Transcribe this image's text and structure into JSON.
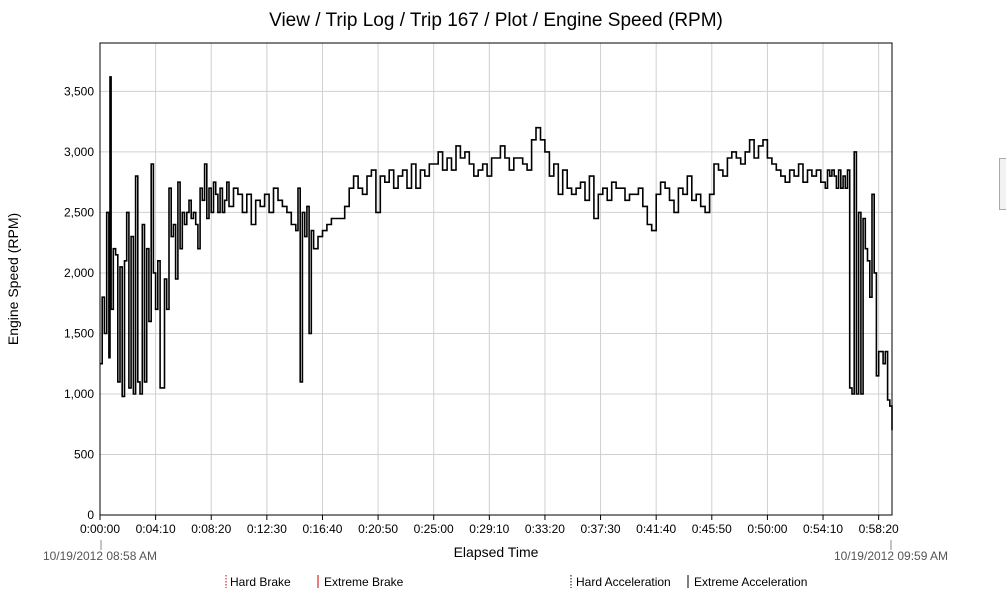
{
  "chart_data": {
    "type": "line",
    "title": "View / Trip Log / Trip 167 / Plot / Engine Speed (RPM)",
    "xlabel": "Elapsed Time",
    "ylabel": "Engine Speed (RPM)",
    "ylim": [
      0,
      3900
    ],
    "xlim_seconds": [
      0,
      3560
    ],
    "grid": true,
    "x_ticks": [
      "0:00:00",
      "0:04:10",
      "0:08:20",
      "0:12:30",
      "0:16:40",
      "0:20:50",
      "0:25:00",
      "0:29:10",
      "0:33:20",
      "0:37:30",
      "0:41:40",
      "0:45:50",
      "0:50:00",
      "0:54:10",
      "0:58:20"
    ],
    "y_ticks": [
      "0",
      "500",
      "1,000",
      "1,500",
      "2,000",
      "2,500",
      "3,000",
      "3,500"
    ],
    "start_time": "10/19/2012 08:58 AM",
    "end_time": "10/19/2012 09:59 AM",
    "legend": [
      {
        "label": "Hard Brake",
        "style": "dotted",
        "color": "#cc0000"
      },
      {
        "label": "Extreme Brake",
        "style": "solid",
        "color": "#cc0000"
      },
      {
        "label": "Hard Acceleration",
        "style": "dotted",
        "color": "#000000"
      },
      {
        "label": "Extreme Acceleration",
        "style": "solid",
        "color": "#000000"
      }
    ],
    "series": [
      {
        "color": "#000000",
        "x": [
          0,
          10,
          20,
          30,
          40,
          45,
          50,
          60,
          70,
          80,
          90,
          100,
          110,
          120,
          130,
          140,
          150,
          160,
          170,
          180,
          190,
          200,
          210,
          220,
          230,
          240,
          250,
          260,
          270,
          280,
          290,
          300,
          310,
          320,
          330,
          340,
          350,
          360,
          370,
          380,
          390,
          400,
          410,
          420,
          430,
          440,
          450,
          460,
          470,
          480,
          490,
          500,
          510,
          520,
          530,
          540,
          550,
          560,
          570,
          580,
          600,
          620,
          640,
          660,
          680,
          700,
          720,
          740,
          760,
          780,
          800,
          820,
          840,
          860,
          880,
          890,
          900,
          910,
          920,
          930,
          940,
          950,
          960,
          980,
          1000,
          1020,
          1040,
          1060,
          1080,
          1100,
          1120,
          1140,
          1160,
          1180,
          1200,
          1220,
          1240,
          1260,
          1280,
          1300,
          1320,
          1340,
          1360,
          1380,
          1400,
          1420,
          1440,
          1460,
          1480,
          1500,
          1520,
          1540,
          1560,
          1580,
          1600,
          1620,
          1640,
          1660,
          1680,
          1700,
          1720,
          1740,
          1760,
          1780,
          1800,
          1820,
          1840,
          1860,
          1880,
          1900,
          1920,
          1940,
          1960,
          1980,
          2000,
          2020,
          2040,
          2060,
          2080,
          2100,
          2120,
          2140,
          2160,
          2180,
          2200,
          2220,
          2240,
          2260,
          2280,
          2300,
          2320,
          2340,
          2360,
          2380,
          2400,
          2420,
          2440,
          2460,
          2480,
          2500,
          2520,
          2540,
          2560,
          2580,
          2600,
          2620,
          2640,
          2660,
          2680,
          2700,
          2720,
          2740,
          2760,
          2780,
          2800,
          2820,
          2840,
          2860,
          2880,
          2900,
          2920,
          2940,
          2960,
          2980,
          3000,
          3020,
          3040,
          3060,
          3080,
          3100,
          3120,
          3140,
          3160,
          3180,
          3200,
          3220,
          3240,
          3260,
          3270,
          3280,
          3290,
          3300,
          3310,
          3320,
          3330,
          3340,
          3350,
          3360,
          3370,
          3380,
          3390,
          3400,
          3410,
          3420,
          3430,
          3440,
          3450,
          3460,
          3470,
          3480,
          3490,
          3500,
          3510,
          3520,
          3530,
          3540,
          3550,
          3560
        ],
        "values": [
          1250,
          1800,
          1500,
          2500,
          1300,
          3620,
          1700,
          2200,
          2150,
          1100,
          2050,
          980,
          2100,
          2500,
          1050,
          2300,
          1000,
          2800,
          1100,
          1000,
          2400,
          1100,
          2200,
          1600,
          2900,
          2000,
          1700,
          2100,
          1050,
          1050,
          1950,
          1700,
          2700,
          2300,
          2400,
          1950,
          2750,
          2200,
          2500,
          2400,
          2500,
          2600,
          2450,
          2500,
          2400,
          2200,
          2700,
          2600,
          2900,
          2450,
          2700,
          2500,
          2750,
          2650,
          2500,
          2700,
          2500,
          2600,
          2750,
          2550,
          2700,
          2650,
          2500,
          2650,
          2400,
          2600,
          2550,
          2650,
          2500,
          2700,
          2600,
          2550,
          2500,
          2400,
          2350,
          2700,
          1100,
          2500,
          2300,
          2550,
          1500,
          2350,
          2200,
          2300,
          2350,
          2400,
          2450,
          2450,
          2450,
          2550,
          2700,
          2800,
          2700,
          2650,
          2800,
          2850,
          2500,
          2800,
          2750,
          2850,
          2700,
          2800,
          2850,
          2700,
          2900,
          2700,
          2850,
          2800,
          2900,
          2900,
          3000,
          2850,
          2950,
          2850,
          3050,
          2950,
          3000,
          2900,
          2800,
          2850,
          2900,
          2800,
          2950,
          2950,
          3050,
          2950,
          2850,
          2950,
          2950,
          2900,
          2850,
          3100,
          3200,
          3100,
          3000,
          2800,
          2900,
          2650,
          2850,
          2700,
          2650,
          2700,
          2750,
          2600,
          2800,
          2450,
          2650,
          2700,
          2600,
          2750,
          2700,
          2700,
          2600,
          2650,
          2650,
          2700,
          2550,
          2400,
          2350,
          2650,
          2750,
          2700,
          2600,
          2500,
          2700,
          2650,
          2800,
          2600,
          2650,
          2550,
          2500,
          2650,
          2900,
          2850,
          2800,
          2950,
          3000,
          2950,
          2900,
          3000,
          3100,
          2950,
          3050,
          3100,
          2950,
          2900,
          2850,
          2800,
          2750,
          2850,
          2800,
          2900,
          2750,
          2850,
          2800,
          2850,
          2750,
          2700,
          2850,
          2800,
          2850,
          2800,
          2700,
          2850,
          2700,
          2800,
          2700,
          2850,
          1050,
          1000,
          3000,
          1000,
          2500,
          1000,
          2450,
          2200,
          2100,
          1800,
          2650,
          2000,
          1150,
          1350,
          1350,
          1250,
          1350,
          950,
          900,
          700
        ]
      }
    ]
  }
}
